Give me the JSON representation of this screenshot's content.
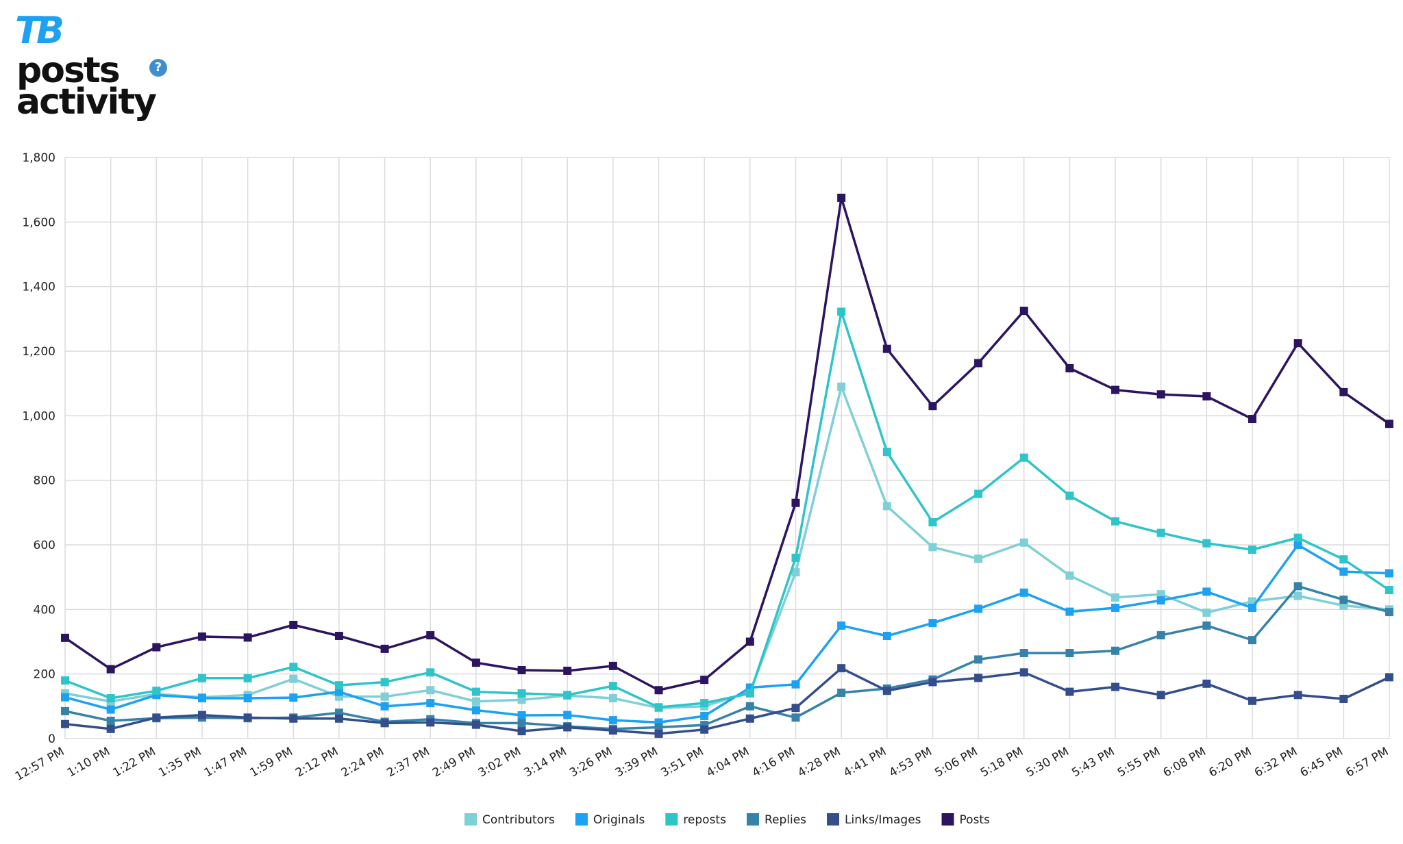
{
  "logo": "TB",
  "help": "?",
  "chart_data": {
    "type": "line",
    "title": "posts activity",
    "categories": [
      "12:57 PM",
      "1:10 PM",
      "1:22 PM",
      "1:35 PM",
      "1:47 PM",
      "1:59 PM",
      "2:12 PM",
      "2:24 PM",
      "2:37 PM",
      "2:49 PM",
      "3:02 PM",
      "3:14 PM",
      "3:26 PM",
      "3:39 PM",
      "3:51 PM",
      "4:04 PM",
      "4:16 PM",
      "4:28 PM",
      "4:41 PM",
      "4:53 PM",
      "5:06 PM",
      "5:18 PM",
      "5:30 PM",
      "5:43 PM",
      "5:55 PM",
      "6:08 PM",
      "6:20 PM",
      "6:32 PM",
      "6:45 PM",
      "6:57 PM"
    ],
    "ylim": [
      0,
      1800
    ],
    "yticks": [
      0,
      200,
      400,
      600,
      800,
      {
        "value": 1000,
        "label": "1,000"
      },
      {
        "value": 1200,
        "label": "1,200"
      },
      {
        "value": 1400,
        "label": "1,400"
      },
      {
        "value": 1600,
        "label": "1,600"
      },
      {
        "value": 1800,
        "label": "1,800"
      }
    ],
    "grid": true,
    "legend": "bottom",
    "series": [
      {
        "name": "Contributors",
        "color": "#7ecfd6",
        "values": [
          140,
          115,
          138,
          128,
          135,
          185,
          130,
          130,
          150,
          115,
          120,
          133,
          125,
          95,
          100,
          145,
          515,
          1090,
          720,
          593,
          557,
          607,
          505,
          437,
          447,
          390,
          425,
          442,
          412,
          400
        ]
      },
      {
        "name": "Originals",
        "color": "#1da1f2",
        "values": [
          128,
          90,
          135,
          125,
          125,
          127,
          145,
          100,
          110,
          88,
          72,
          73,
          57,
          50,
          70,
          158,
          168,
          350,
          318,
          358,
          402,
          452,
          393,
          405,
          428,
          455,
          405,
          600,
          517,
          512
        ]
      },
      {
        "name": "reposts",
        "color": "#2ec4c9",
        "values": [
          180,
          125,
          148,
          187,
          187,
          222,
          165,
          175,
          205,
          145,
          140,
          135,
          163,
          97,
          110,
          140,
          560,
          1322,
          888,
          670,
          758,
          870,
          752,
          673,
          637,
          605,
          585,
          622,
          555,
          460
        ]
      },
      {
        "name": "Replies",
        "color": "#3682a8",
        "values": [
          85,
          55,
          63,
          65,
          63,
          65,
          80,
          52,
          60,
          48,
          48,
          38,
          30,
          35,
          42,
          100,
          65,
          142,
          155,
          183,
          245,
          265,
          265,
          272,
          320,
          350,
          305,
          472,
          430,
          392
        ]
      },
      {
        "name": "Links/Images",
        "color": "#344e8c",
        "values": [
          45,
          30,
          65,
          73,
          65,
          62,
          62,
          48,
          50,
          43,
          23,
          35,
          25,
          15,
          28,
          62,
          95,
          218,
          148,
          175,
          188,
          205,
          145,
          160,
          135,
          170,
          117,
          135,
          123,
          190
        ]
      },
      {
        "name": "Posts",
        "color": "#2d1460",
        "values": [
          312,
          215,
          283,
          316,
          313,
          352,
          318,
          278,
          320,
          235,
          212,
          210,
          225,
          150,
          182,
          300,
          730,
          1675,
          1207,
          1030,
          1163,
          1325,
          1147,
          1080,
          1066,
          1060,
          990,
          1225,
          1073,
          975
        ]
      }
    ]
  }
}
